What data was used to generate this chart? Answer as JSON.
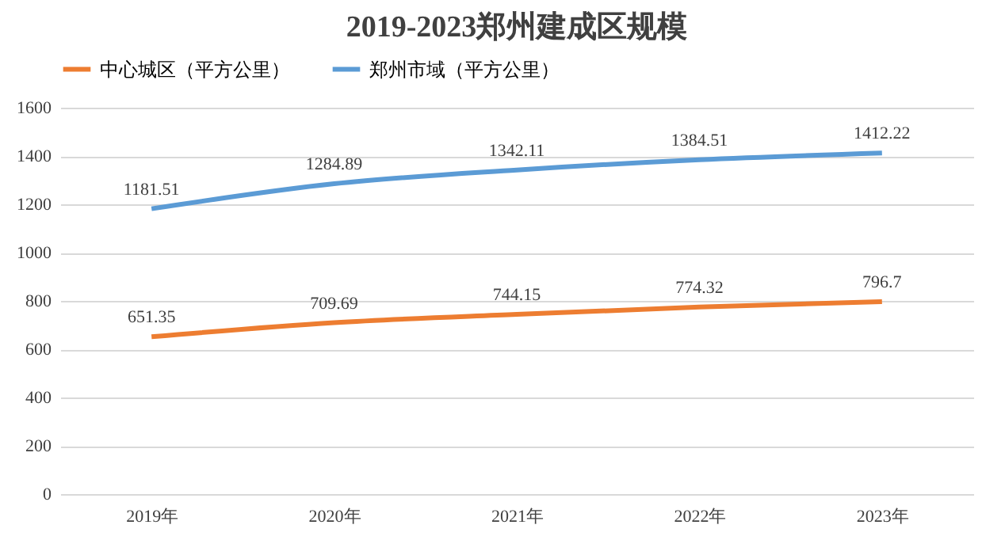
{
  "chart_data": {
    "type": "line",
    "title": "2019-2023郑州建成区规模",
    "categories": [
      "2019年",
      "2020年",
      "2021年",
      "2022年",
      "2023年"
    ],
    "series": [
      {
        "name": "中心城区（平方公里）",
        "color": "#ed7d31",
        "values": [
          651.35,
          709.69,
          744.15,
          774.32,
          796.7
        ]
      },
      {
        "name": "郑州市域（平方公里）",
        "color": "#5b9bd5",
        "values": [
          1181.51,
          1284.89,
          1342.11,
          1384.51,
          1412.22
        ]
      }
    ],
    "ylim": [
      0,
      1600
    ],
    "yticks": [
      0,
      200,
      400,
      600,
      800,
      1000,
      1200,
      1400,
      1600
    ],
    "grid": "y",
    "legend": "top",
    "data_labels": true,
    "marker": "none",
    "line_style": "solid"
  }
}
